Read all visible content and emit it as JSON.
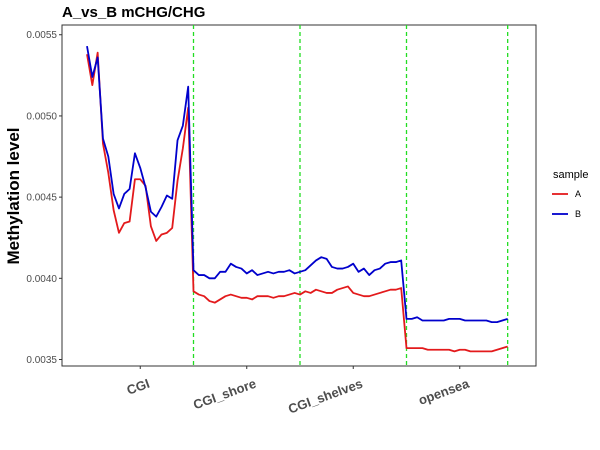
{
  "chart_data": {
    "type": "line",
    "title": "A_vs_B mCHG/CHG",
    "xlabel": "",
    "ylabel": "Methylation level",
    "ylim": [
      0.00346,
      0.00556
    ],
    "yticks": [
      0.0035,
      0.004,
      0.0045,
      0.005,
      0.0055
    ],
    "ytick_labels": [
      "0.0035",
      "0.0040",
      "0.0045",
      "0.0050",
      "0.0055"
    ],
    "xlim": [
      0,
      80
    ],
    "regions": [
      {
        "label": "CGI",
        "center": 10
      },
      {
        "label": "CGI_shore",
        "center": 30
      },
      {
        "label": "CGI_shelves",
        "center": 50
      },
      {
        "label": "opensea",
        "center": 70
      }
    ],
    "boundaries": [
      20,
      40,
      60,
      79
    ],
    "grid": false,
    "legend": {
      "title": "sample",
      "position": "right"
    },
    "series": [
      {
        "name": "A",
        "color": "#e31a1c",
        "values": [
          0.00538,
          0.00519,
          0.00539,
          0.00483,
          0.00465,
          0.00442,
          0.00428,
          0.00434,
          0.00435,
          0.00461,
          0.00461,
          0.00457,
          0.00432,
          0.00423,
          0.00427,
          0.00428,
          0.00431,
          0.0046,
          0.0048,
          0.00505,
          0.00392,
          0.0039,
          0.00389,
          0.00386,
          0.00385,
          0.00387,
          0.00389,
          0.0039,
          0.00389,
          0.00388,
          0.00388,
          0.00387,
          0.00389,
          0.00389,
          0.00389,
          0.00388,
          0.00389,
          0.00389,
          0.0039,
          0.00391,
          0.0039,
          0.00392,
          0.00391,
          0.00393,
          0.00392,
          0.00391,
          0.00391,
          0.00393,
          0.00394,
          0.00395,
          0.00391,
          0.0039,
          0.00389,
          0.00389,
          0.0039,
          0.00391,
          0.00392,
          0.00393,
          0.00393,
          0.00394,
          0.00357,
          0.00357,
          0.00357,
          0.00357,
          0.00356,
          0.00356,
          0.00356,
          0.00356,
          0.00356,
          0.00355,
          0.00356,
          0.00356,
          0.00355,
          0.00355,
          0.00355,
          0.00355,
          0.00355,
          0.00356,
          0.00357,
          0.00358
        ]
      },
      {
        "name": "B",
        "color": "#0000cc",
        "values": [
          0.00543,
          0.00524,
          0.00536,
          0.00486,
          0.00475,
          0.00452,
          0.00443,
          0.00452,
          0.00455,
          0.00477,
          0.00468,
          0.00456,
          0.00441,
          0.00438,
          0.00444,
          0.00451,
          0.00449,
          0.00485,
          0.00494,
          0.00518,
          0.00405,
          0.00402,
          0.00402,
          0.004,
          0.004,
          0.00404,
          0.00404,
          0.00409,
          0.00407,
          0.00406,
          0.00403,
          0.00405,
          0.00402,
          0.00403,
          0.00404,
          0.00403,
          0.00404,
          0.00404,
          0.00405,
          0.00403,
          0.00404,
          0.00405,
          0.00408,
          0.00411,
          0.00413,
          0.00412,
          0.00407,
          0.00406,
          0.00406,
          0.00407,
          0.00409,
          0.00404,
          0.00406,
          0.00402,
          0.00405,
          0.00406,
          0.00409,
          0.0041,
          0.0041,
          0.00411,
          0.00375,
          0.00375,
          0.00376,
          0.00374,
          0.00374,
          0.00374,
          0.00374,
          0.00374,
          0.00375,
          0.00375,
          0.00375,
          0.00374,
          0.00374,
          0.00374,
          0.00374,
          0.00374,
          0.00373,
          0.00373,
          0.00374,
          0.00375
        ]
      }
    ]
  }
}
